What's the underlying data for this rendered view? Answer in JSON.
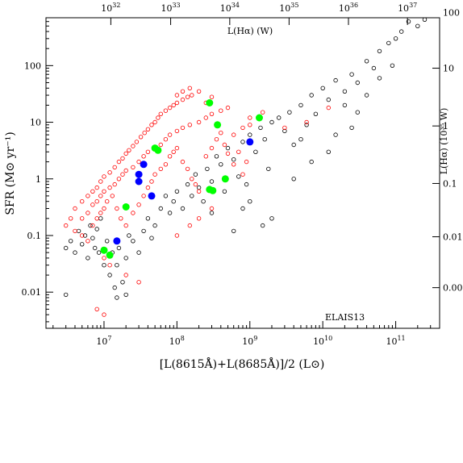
{
  "chart_data": {
    "type": "scatter",
    "xlabel": "[L(8615Å)+L(8685Å)]/2 (L⊙)",
    "ylabel": "SFR (M⊙ yr⁻¹)",
    "top_axis_label": "L(Hα) (W)",
    "right_axis_label": "L(Hα) (10³⁵ W)",
    "annotation": "ELAIS13",
    "x_scale": "log",
    "y_scale": "log",
    "xlim": [
      1600000.0,
      400000000000.0
    ],
    "ylim": [
      0.0023,
      700
    ],
    "x_ticks": [
      {
        "value": 10000000.0,
        "base": "10",
        "exp": "7"
      },
      {
        "value": 100000000.0,
        "base": "10",
        "exp": "8"
      },
      {
        "value": 1000000000.0,
        "base": "10",
        "exp": "9"
      },
      {
        "value": 10000000000.0,
        "base": "10",
        "exp": "10"
      },
      {
        "value": 100000000000.0,
        "base": "10",
        "exp": "11"
      }
    ],
    "y_ticks": [
      {
        "value": 0.01,
        "label": "0.01"
      },
      {
        "value": 0.1,
        "label": "0.1"
      },
      {
        "value": 1,
        "label": "1"
      },
      {
        "value": 10,
        "label": "10"
      },
      {
        "value": 100,
        "label": "100"
      }
    ],
    "top_ticks": [
      {
        "x_value": 12400000.0,
        "base": "10",
        "exp": "32"
      },
      {
        "x_value": 82000000.0,
        "base": "10",
        "exp": "33"
      },
      {
        "x_value": 530000000.0,
        "base": "10",
        "exp": "34"
      },
      {
        "x_value": 3450000000.0,
        "base": "10",
        "exp": "35"
      },
      {
        "x_value": 22500000000.0,
        "base": "10",
        "exp": "36"
      },
      {
        "x_value": 145000000000.0,
        "base": "10",
        "exp": "37"
      }
    ],
    "right_ticks": [
      {
        "y_value": 0.012,
        "label": "0.00"
      },
      {
        "y_value": 0.095,
        "label": "0.01"
      },
      {
        "y_value": 0.83,
        "label": "0.1"
      },
      {
        "y_value": 8.6,
        "label": "1"
      },
      {
        "y_value": 90,
        "label": "10"
      },
      {
        "y_value": 870,
        "label": "100"
      }
    ],
    "series": [
      {
        "marker": "open-circle",
        "color": "#000000",
        "points": [
          [
            3000000.0,
            0.06
          ],
          [
            3500000.0,
            0.08
          ],
          [
            4000000.0,
            0.05
          ],
          [
            4500000.0,
            0.12
          ],
          [
            5000000.0,
            0.07
          ],
          [
            5500000.0,
            0.1
          ],
          [
            6000000.0,
            0.04
          ],
          [
            6500000.0,
            0.15
          ],
          [
            7000000.0,
            0.09
          ],
          [
            7500000.0,
            0.06
          ],
          [
            8000000.0,
            0.13
          ],
          [
            8500000.0,
            0.05
          ],
          [
            9000000.0,
            0.2
          ],
          [
            10000000.0,
            0.03
          ],
          [
            11000000.0,
            0.08
          ],
          [
            12000000.0,
            0.02
          ],
          [
            13000000.0,
            0.05
          ],
          [
            14000000.0,
            0.012
          ],
          [
            15000000.0,
            0.03
          ],
          [
            16000000.0,
            0.06
          ],
          [
            18000000.0,
            0.015
          ],
          [
            20000000.0,
            0.04
          ],
          [
            22000000.0,
            0.1
          ],
          [
            25000000.0,
            0.08
          ],
          [
            30000000.0,
            0.05
          ],
          [
            35000000.0,
            0.12
          ],
          [
            40000000.0,
            0.2
          ],
          [
            45000000.0,
            0.09
          ],
          [
            50000000.0,
            0.15
          ],
          [
            60000000.0,
            0.3
          ],
          [
            70000000.0,
            0.5
          ],
          [
            80000000.0,
            0.25
          ],
          [
            90000000.0,
            0.4
          ],
          [
            100000000.0,
            0.6
          ],
          [
            120000000.0,
            0.3
          ],
          [
            140000000.0,
            0.8
          ],
          [
            160000000.0,
            0.5
          ],
          [
            180000000.0,
            1.2
          ],
          [
            200000000.0,
            0.7
          ],
          [
            230000000.0,
            0.4
          ],
          [
            260000000.0,
            1.5
          ],
          [
            300000000.0,
            0.9
          ],
          [
            350000000.0,
            2.5
          ],
          [
            400000000.0,
            1.8
          ],
          [
            450000000.0,
            0.6
          ],
          [
            500000000.0,
            3.5
          ],
          [
            600000000.0,
            2.2
          ],
          [
            700000000.0,
            1.1
          ],
          [
            800000000.0,
            4.5
          ],
          [
            900000000.0,
            0.8
          ],
          [
            1000000000.0,
            6
          ],
          [
            1200000000.0,
            3
          ],
          [
            1400000000.0,
            8
          ],
          [
            1600000000.0,
            5
          ],
          [
            1800000000.0,
            1.5
          ],
          [
            2000000000.0,
            10
          ],
          [
            2500000000.0,
            12
          ],
          [
            3000000000.0,
            7
          ],
          [
            3500000000.0,
            15
          ],
          [
            4000000000.0,
            4
          ],
          [
            5000000000.0,
            20
          ],
          [
            6000000000.0,
            9
          ],
          [
            7000000000.0,
            30
          ],
          [
            8000000000.0,
            14
          ],
          [
            10000000000.0,
            40
          ],
          [
            12000000000.0,
            25
          ],
          [
            15000000000.0,
            55
          ],
          [
            20000000000.0,
            35
          ],
          [
            25000000000.0,
            70
          ],
          [
            30000000000.0,
            50
          ],
          [
            40000000000.0,
            120
          ],
          [
            50000000000.0,
            90
          ],
          [
            60000000000.0,
            180
          ],
          [
            80000000000.0,
            250
          ],
          [
            100000000000.0,
            300
          ],
          [
            120000000000.0,
            400
          ],
          [
            150000000000.0,
            600
          ],
          [
            200000000000.0,
            500
          ],
          [
            250000000000.0,
            650
          ],
          [
            300000000000.0,
            800
          ],
          [
            15000000.0,
            0.008
          ],
          [
            20000000.0,
            0.009
          ],
          [
            3000000.0,
            0.009
          ],
          [
            1000000000.0,
            0.4
          ],
          [
            2000000000.0,
            0.2
          ],
          [
            1500000000.0,
            0.15
          ],
          [
            800000000.0,
            0.3
          ],
          [
            300000000.0,
            0.25
          ],
          [
            600000000.0,
            0.12
          ],
          [
            4000000000.0,
            1
          ],
          [
            7000000000.0,
            2
          ],
          [
            12000000000.0,
            3
          ],
          [
            25000000000.0,
            8
          ],
          [
            30000000000.0,
            15
          ],
          [
            5000000000.0,
            5
          ],
          [
            15000000000.0,
            6
          ],
          [
            20000000000.0,
            20
          ],
          [
            40000000000.0,
            30
          ],
          [
            60000000000.0,
            60
          ],
          [
            90000000000.0,
            100
          ]
        ]
      },
      {
        "marker": "open-circle",
        "color": "#ff0000",
        "points": [
          [
            4000000.0,
            0.3
          ],
          [
            5000000.0,
            0.4
          ],
          [
            6000000.0,
            0.5
          ],
          [
            7000000.0,
            0.6
          ],
          [
            8000000.0,
            0.7
          ],
          [
            9000000.0,
            0.9
          ],
          [
            10000000.0,
            1.1
          ],
          [
            12000000.0,
            1.3
          ],
          [
            14000000.0,
            1.6
          ],
          [
            16000000.0,
            2
          ],
          [
            18000000.0,
            2.3
          ],
          [
            20000000.0,
            2.8
          ],
          [
            22000000.0,
            3.2
          ],
          [
            25000000.0,
            3.8
          ],
          [
            28000000.0,
            4.5
          ],
          [
            32000000.0,
            5.5
          ],
          [
            36000000.0,
            6.5
          ],
          [
            40000000.0,
            7.5
          ],
          [
            45000000.0,
            9
          ],
          [
            50000000.0,
            10
          ],
          [
            55000000.0,
            12
          ],
          [
            60000000.0,
            14
          ],
          [
            70000000.0,
            16
          ],
          [
            80000000.0,
            18
          ],
          [
            90000000.0,
            20
          ],
          [
            100000000.0,
            22
          ],
          [
            120000000.0,
            25
          ],
          [
            140000000.0,
            28
          ],
          [
            160000000.0,
            30
          ],
          [
            200000000.0,
            35
          ],
          [
            5000000.0,
            0.2
          ],
          [
            6000000.0,
            0.25
          ],
          [
            7000000.0,
            0.35
          ],
          [
            8000000.0,
            0.4
          ],
          [
            9000000.0,
            0.5
          ],
          [
            10000000.0,
            0.6
          ],
          [
            12000000.0,
            0.7
          ],
          [
            14000000.0,
            0.8
          ],
          [
            16000000.0,
            1
          ],
          [
            18000000.0,
            1.2
          ],
          [
            20000000.0,
            1.4
          ],
          [
            25000000.0,
            1.6
          ],
          [
            30000000.0,
            2
          ],
          [
            35000000.0,
            2.5
          ],
          [
            40000000.0,
            3
          ],
          [
            50000000.0,
            3.5
          ],
          [
            60000000.0,
            4
          ],
          [
            70000000.0,
            5
          ],
          [
            80000000.0,
            6
          ],
          [
            100000000.0,
            7
          ],
          [
            120000000.0,
            8
          ],
          [
            150000000.0,
            9
          ],
          [
            200000000.0,
            10
          ],
          [
            250000000.0,
            12
          ],
          [
            300000000.0,
            14
          ],
          [
            400000000.0,
            16
          ],
          [
            500000000.0,
            18
          ],
          [
            600000000.0,
            6
          ],
          [
            800000000.0,
            8
          ],
          [
            1000000000.0,
            9
          ],
          [
            3000000.0,
            0.15
          ],
          [
            3500000.0,
            0.2
          ],
          [
            4000000.0,
            0.12
          ],
          [
            5000000.0,
            0.1
          ],
          [
            6000000.0,
            0.08
          ],
          [
            7000000.0,
            0.15
          ],
          [
            8000000.0,
            0.2
          ],
          [
            9000000.0,
            0.25
          ],
          [
            10000000.0,
            0.3
          ],
          [
            11000000.0,
            0.4
          ],
          [
            13000000.0,
            0.5
          ],
          [
            15000000.0,
            0.3
          ],
          [
            17000000.0,
            0.2
          ],
          [
            20000000.0,
            0.15
          ],
          [
            25000000.0,
            0.25
          ],
          [
            30000000.0,
            0.35
          ],
          [
            35000000.0,
            0.5
          ],
          [
            40000000.0,
            0.7
          ],
          [
            45000000.0,
            0.9
          ],
          [
            50000000.0,
            1.2
          ],
          [
            60000000.0,
            1.5
          ],
          [
            70000000.0,
            1.8
          ],
          [
            80000000.0,
            2.5
          ],
          [
            90000000.0,
            3
          ],
          [
            100000000.0,
            3.5
          ],
          [
            120000000.0,
            2
          ],
          [
            140000000.0,
            1.5
          ],
          [
            160000000.0,
            1
          ],
          [
            180000000.0,
            0.8
          ],
          [
            200000000.0,
            0.6
          ],
          [
            250000000.0,
            2.5
          ],
          [
            300000000.0,
            3.5
          ],
          [
            350000000.0,
            5
          ],
          [
            400000000.0,
            6.5
          ],
          [
            450000000.0,
            4
          ],
          [
            500000000.0,
            2.8
          ],
          [
            600000000.0,
            1.8
          ],
          [
            700000000.0,
            3
          ],
          [
            800000000.0,
            1.2
          ],
          [
            900000000.0,
            2
          ],
          [
            10000000.0,
            0.04
          ],
          [
            12000000.0,
            0.03
          ],
          [
            8000000.0,
            0.005
          ],
          [
            10000000.0,
            0.004
          ],
          [
            20000000.0,
            0.02
          ],
          [
            30000000.0,
            0.015
          ],
          [
            100000000.0,
            0.1
          ],
          [
            150000000.0,
            0.15
          ],
          [
            200000000.0,
            0.2
          ],
          [
            300000000.0,
            0.3
          ],
          [
            150000000.0,
            40
          ],
          [
            120000000.0,
            35
          ],
          [
            100000000.0,
            30
          ],
          [
            250000000.0,
            22
          ],
          [
            300000000.0,
            28
          ],
          [
            1000000000.0,
            12
          ],
          [
            1500000000.0,
            15
          ],
          [
            12000000000.0,
            18
          ],
          [
            6000000000.0,
            10
          ],
          [
            3000000000.0,
            8
          ]
        ]
      },
      {
        "marker": "filled-circle",
        "color": "#0000ff",
        "points": [
          [
            35000000.0,
            1.8
          ],
          [
            30000000.0,
            1.2
          ],
          [
            30000000.0,
            0.9
          ],
          [
            45000000.0,
            0.5
          ],
          [
            15000000.0,
            0.08
          ],
          [
            1000000000.0,
            4.5
          ]
        ]
      },
      {
        "marker": "filled-circle",
        "color": "#00ff00",
        "points": [
          [
            280000000.0,
            22
          ],
          [
            360000000.0,
            9
          ],
          [
            1350000000.0,
            12
          ],
          [
            50000000.0,
            3.5
          ],
          [
            55000000.0,
            3.2
          ],
          [
            460000000.0,
            1
          ],
          [
            280000000.0,
            0.65
          ],
          [
            310000000.0,
            0.62
          ],
          [
            20000000.0,
            0.32
          ],
          [
            10000000.0,
            0.055
          ],
          [
            12000000.0,
            0.045
          ]
        ]
      }
    ]
  }
}
